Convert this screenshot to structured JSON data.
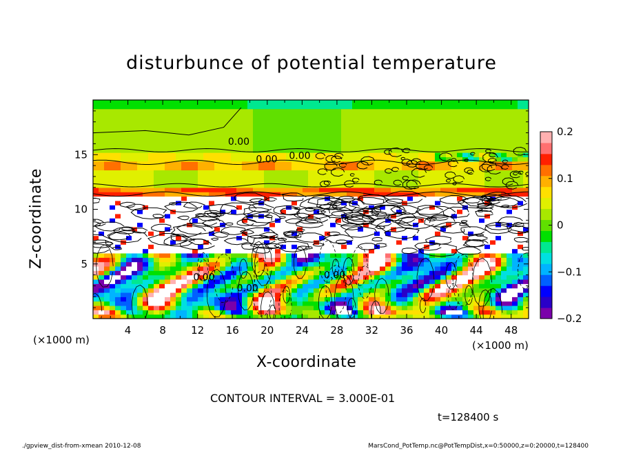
{
  "chart_data": {
    "type": "heatmap",
    "title": "disturbunce of potential temperature",
    "xlabel": "X-coordinate",
    "ylabel": "Z-coordinate",
    "x_unit": "(×1000 m)",
    "y_unit": "(×1000 m)",
    "xlim": [
      0,
      50
    ],
    "ylim": [
      0,
      20
    ],
    "xticks": [
      4,
      8,
      12,
      16,
      20,
      24,
      28,
      32,
      36,
      40,
      44,
      48
    ],
    "yticks": [
      5,
      10,
      15
    ],
    "colorbar": {
      "range": [
        -0.2,
        0.2
      ],
      "ticks": [
        "0.2",
        "0.1",
        "0",
        "−0.1",
        "−0.2"
      ],
      "tick_values": [
        0.2,
        0.1,
        0,
        -0.1,
        -0.2
      ],
      "colors": [
        "#7a00aa",
        "#2a00c8",
        "#0000ff",
        "#0060ff",
        "#00b4ff",
        "#00e0e0",
        "#00e890",
        "#00e000",
        "#60e000",
        "#a8e800",
        "#e0f000",
        "#ffe000",
        "#ffb000",
        "#ff7000",
        "#ff2000",
        "#ff7070",
        "#ffb0b0"
      ]
    },
    "contour_labels": [
      {
        "text": "0.00",
        "x": 15.5,
        "z": 15.9
      },
      {
        "text": "0.00",
        "x": 18.7,
        "z": 14.3
      },
      {
        "text": "0.00",
        "x": 22.5,
        "z": 14.6
      },
      {
        "text": "0.00",
        "x": 11.5,
        "z": 3.5
      },
      {
        "text": "0.00",
        "x": 16.5,
        "z": 2.5
      },
      {
        "text": "0.00",
        "x": 26.5,
        "z": 3.7
      }
    ],
    "contour_interval": "CONTOUR INTERVAL = 3.000E-01",
    "time": "t=128400 s"
  },
  "footer": {
    "left": "./gpview_dist-from-xmean  2010-12-08",
    "right": "MarsCond_PotTemp.nc@PotTempDist,x=0:50000,z=0:20000,t=128400"
  }
}
